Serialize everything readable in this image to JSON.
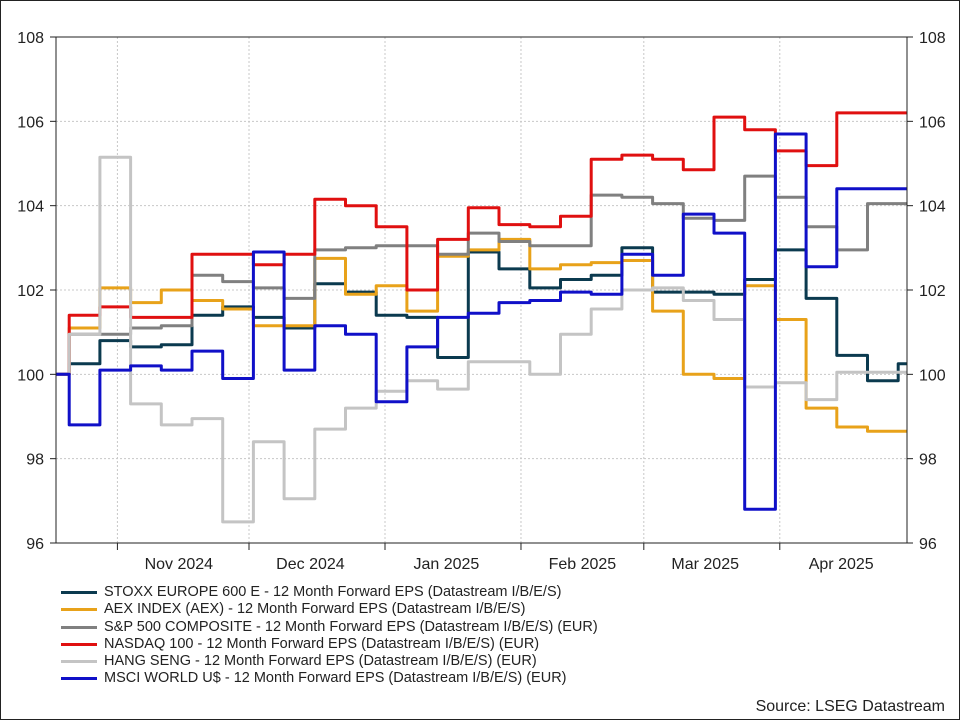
{
  "chart_data": {
    "type": "line",
    "title": "",
    "xlabel": "",
    "ylabel": "",
    "ylim": [
      96,
      108
    ],
    "y_ticks": [
      96,
      98,
      100,
      102,
      104,
      106,
      108
    ],
    "x_range": [
      "2024-10-18",
      "2025-04-30"
    ],
    "x_ticks": [
      {
        "label": "Nov 2024",
        "date": "2024-11-15"
      },
      {
        "label": "Dec 2024",
        "date": "2024-12-15"
      },
      {
        "label": "Jan 2025",
        "date": "2025-01-15"
      },
      {
        "label": "Feb 2025",
        "date": "2025-02-15"
      },
      {
        "label": "Mar 2025",
        "date": "2025-03-15"
      },
      {
        "label": "Apr 2025",
        "date": "2025-04-15"
      }
    ],
    "month_boundaries": [
      "2024-11-01",
      "2024-12-01",
      "2025-01-01",
      "2025-02-01",
      "2025-03-01",
      "2025-04-01"
    ],
    "grid": true,
    "legend_position": "bottom",
    "source": "Source: LSEG Datastream",
    "series": [
      {
        "name": "STOXX EUROPE 600 E - 12 Month Forward EPS (Datastream I/B/E/S)",
        "color": "#0b3a4f",
        "dates": [
          "2024-10-18",
          "2024-10-21",
          "2024-10-28",
          "2024-11-04",
          "2024-11-11",
          "2024-11-18",
          "2024-11-25",
          "2024-12-02",
          "2024-12-09",
          "2024-12-16",
          "2024-12-23",
          "2024-12-30",
          "2025-01-06",
          "2025-01-13",
          "2025-01-20",
          "2025-01-27",
          "2025-02-03",
          "2025-02-10",
          "2025-02-17",
          "2025-02-24",
          "2025-03-03",
          "2025-03-10",
          "2025-03-17",
          "2025-03-24",
          "2025-03-31",
          "2025-04-07",
          "2025-04-14",
          "2025-04-21",
          "2025-04-28",
          "2025-04-30"
        ],
        "values": [
          100.0,
          100.25,
          100.8,
          100.65,
          100.7,
          101.4,
          101.6,
          101.35,
          101.1,
          102.15,
          101.95,
          101.4,
          101.35,
          100.4,
          102.9,
          102.5,
          102.05,
          102.25,
          102.35,
          103.0,
          101.95,
          101.95,
          101.9,
          102.25,
          102.95,
          101.8,
          100.45,
          99.85,
          100.25,
          100.25
        ]
      },
      {
        "name": "AEX INDEX (AEX) - 12 Month Forward EPS (Datastream I/B/E/S)",
        "color": "#e8a21a",
        "dates": [
          "2024-10-18",
          "2024-10-21",
          "2024-10-28",
          "2024-11-04",
          "2024-11-11",
          "2024-11-18",
          "2024-11-25",
          "2024-12-02",
          "2024-12-09",
          "2024-12-16",
          "2024-12-23",
          "2024-12-30",
          "2025-01-06",
          "2025-01-13",
          "2025-01-20",
          "2025-01-27",
          "2025-02-03",
          "2025-02-10",
          "2025-02-17",
          "2025-02-24",
          "2025-03-03",
          "2025-03-10",
          "2025-03-17",
          "2025-03-24",
          "2025-03-31",
          "2025-04-07",
          "2025-04-14",
          "2025-04-21",
          "2025-04-28",
          "2025-04-30"
        ],
        "values": [
          100.0,
          101.1,
          102.05,
          101.7,
          102.0,
          101.75,
          101.55,
          101.15,
          101.15,
          102.75,
          101.9,
          102.1,
          101.5,
          102.8,
          102.95,
          103.2,
          102.5,
          102.6,
          102.65,
          102.7,
          101.5,
          100.0,
          99.9,
          102.1,
          101.3,
          99.2,
          98.75,
          98.65,
          98.65,
          98.65
        ]
      },
      {
        "name": "S&P 500 COMPOSITE - 12 Month Forward EPS (Datastream I/B/E/S) (EUR)",
        "color": "#808080",
        "dates": [
          "2024-10-18",
          "2024-10-21",
          "2024-10-28",
          "2024-11-04",
          "2024-11-11",
          "2024-11-18",
          "2024-11-25",
          "2024-12-02",
          "2024-12-09",
          "2024-12-16",
          "2024-12-23",
          "2024-12-30",
          "2025-01-06",
          "2025-01-13",
          "2025-01-20",
          "2025-01-27",
          "2025-02-03",
          "2025-02-10",
          "2025-02-17",
          "2025-02-24",
          "2025-03-03",
          "2025-03-10",
          "2025-03-17",
          "2025-03-24",
          "2025-03-31",
          "2025-04-07",
          "2025-04-14",
          "2025-04-21",
          "2025-04-28",
          "2025-04-30"
        ],
        "values": [
          100.0,
          100.95,
          100.95,
          101.1,
          101.15,
          102.35,
          102.2,
          102.05,
          101.8,
          102.95,
          103.0,
          103.05,
          103.05,
          102.85,
          103.35,
          103.15,
          103.05,
          103.05,
          104.25,
          104.2,
          104.05,
          103.7,
          103.65,
          104.7,
          104.2,
          103.5,
          102.95,
          104.05,
          104.05,
          104.05
        ]
      },
      {
        "name": "NASDAQ 100 - 12 Month Forward EPS (Datastream I/B/E/S) (EUR)",
        "color": "#e01010",
        "dates": [
          "2024-10-18",
          "2024-10-21",
          "2024-10-28",
          "2024-11-04",
          "2024-11-11",
          "2024-11-18",
          "2024-11-25",
          "2024-12-02",
          "2024-12-09",
          "2024-12-16",
          "2024-12-23",
          "2024-12-30",
          "2025-01-06",
          "2025-01-13",
          "2025-01-20",
          "2025-01-27",
          "2025-02-03",
          "2025-02-10",
          "2025-02-17",
          "2025-02-24",
          "2025-03-03",
          "2025-03-10",
          "2025-03-17",
          "2025-03-24",
          "2025-03-31",
          "2025-04-07",
          "2025-04-14",
          "2025-04-21",
          "2025-04-28",
          "2025-04-30"
        ],
        "values": [
          100.0,
          101.4,
          101.6,
          101.35,
          101.35,
          102.85,
          102.85,
          102.6,
          102.85,
          104.15,
          104.0,
          103.5,
          102.0,
          103.2,
          103.95,
          103.55,
          103.5,
          103.75,
          105.1,
          105.2,
          105.1,
          104.85,
          106.1,
          105.8,
          105.3,
          104.95,
          106.2,
          106.2,
          106.2,
          106.2
        ]
      },
      {
        "name": "HANG SENG - 12 Month Forward EPS (Datastream I/B/E/S) (EUR)",
        "color": "#c4c4c4",
        "dates": [
          "2024-10-18",
          "2024-10-21",
          "2024-10-28",
          "2024-11-04",
          "2024-11-11",
          "2024-11-18",
          "2024-11-25",
          "2024-12-02",
          "2024-12-09",
          "2024-12-16",
          "2024-12-23",
          "2024-12-30",
          "2025-01-06",
          "2025-01-13",
          "2025-01-20",
          "2025-01-27",
          "2025-02-03",
          "2025-02-10",
          "2025-02-17",
          "2025-02-24",
          "2025-03-03",
          "2025-03-10",
          "2025-03-17",
          "2025-03-24",
          "2025-03-31",
          "2025-04-07",
          "2025-04-14",
          "2025-04-21",
          "2025-04-28",
          "2025-04-30"
        ],
        "values": [
          100.0,
          100.95,
          105.15,
          99.3,
          98.8,
          98.95,
          96.5,
          98.4,
          97.05,
          98.7,
          99.2,
          99.6,
          99.85,
          99.65,
          100.3,
          100.3,
          100.0,
          100.95,
          101.55,
          102.0,
          102.05,
          101.75,
          101.3,
          99.7,
          99.8,
          99.4,
          100.05,
          100.05,
          100.05,
          100.05
        ]
      },
      {
        "name": "MSCI WORLD U$ - 12 Month Forward EPS (Datastream I/B/E/S) (EUR)",
        "color": "#1010c8",
        "dates": [
          "2024-10-18",
          "2024-10-21",
          "2024-10-28",
          "2024-11-04",
          "2024-11-11",
          "2024-11-18",
          "2024-11-25",
          "2024-12-02",
          "2024-12-09",
          "2024-12-16",
          "2024-12-23",
          "2024-12-30",
          "2025-01-06",
          "2025-01-13",
          "2025-01-20",
          "2025-01-27",
          "2025-02-03",
          "2025-02-10",
          "2025-02-17",
          "2025-02-24",
          "2025-03-03",
          "2025-03-10",
          "2025-03-17",
          "2025-03-24",
          "2025-03-31",
          "2025-04-07",
          "2025-04-14",
          "2025-04-21",
          "2025-04-28",
          "2025-04-30"
        ],
        "values": [
          100.0,
          98.8,
          100.1,
          100.2,
          100.1,
          100.55,
          99.9,
          102.9,
          100.1,
          101.15,
          100.95,
          99.35,
          100.65,
          101.35,
          101.45,
          101.7,
          101.75,
          101.95,
          101.9,
          102.85,
          102.35,
          103.8,
          103.35,
          96.8,
          105.7,
          102.55,
          104.4,
          104.4,
          104.4,
          104.4
        ]
      }
    ]
  }
}
